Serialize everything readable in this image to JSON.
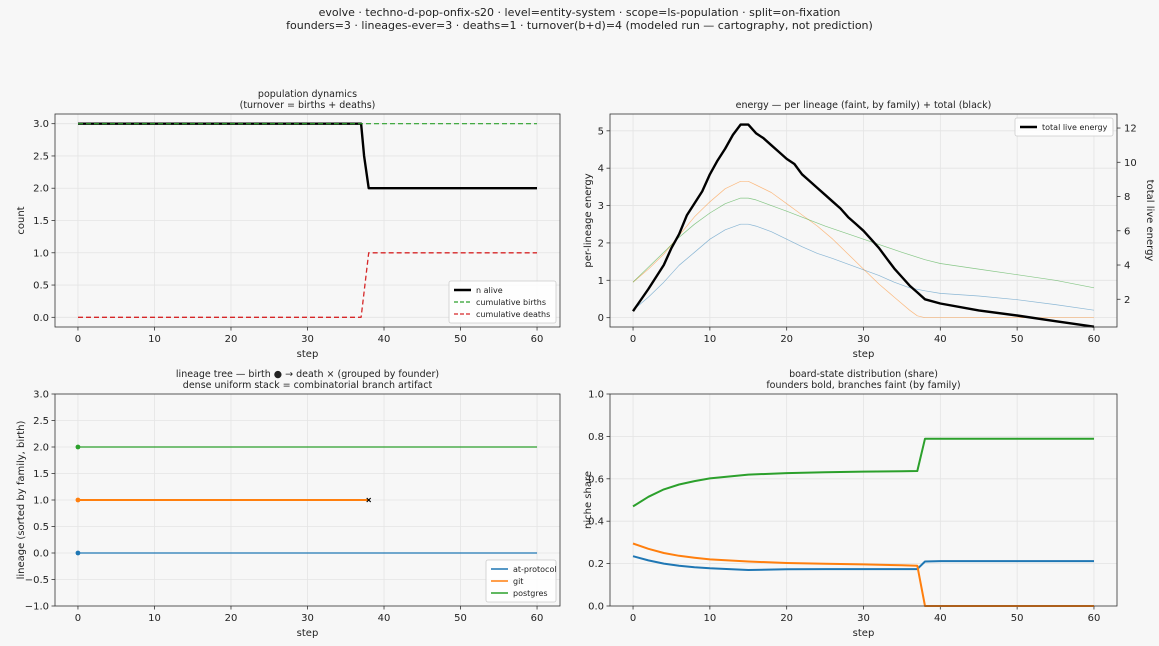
{
  "header": {
    "line1": "evolve · techno-d-pop-onfix-s20 · level=entity-system · scope=ls-population · split=on-fixation",
    "line2": "founders=3 · lineages-ever=3 · deaths=1 · turnover(b+d)=4   (modeled run — cartography, not prediction)"
  },
  "colors": {
    "at_protocol": "#1f77b4",
    "git": "#ff7f0e",
    "postgres": "#2ca02c",
    "births": "#2ca02c",
    "deaths": "#d62728",
    "alive": "#000000",
    "grid": "#e4e4e4"
  },
  "chart_data": [
    {
      "type": "line",
      "title": "population dynamics",
      "subtitle": "(turnover = births + deaths)",
      "xlabel": "step",
      "ylabel": "count",
      "xlim": [
        -3,
        63
      ],
      "ylim": [
        -0.15,
        3.15
      ],
      "xticks": [
        0,
        10,
        20,
        30,
        40,
        50,
        60
      ],
      "yticks": [
        0.0,
        0.5,
        1.0,
        1.5,
        2.0,
        2.5,
        3.0
      ],
      "ytick_labels": [
        "0.0",
        "0.5",
        "1.0",
        "1.5",
        "2.0",
        "2.5",
        "3.0"
      ],
      "grid": true,
      "legend_position": "bottom-right",
      "series": [
        {
          "name": "n alive",
          "style": "solid",
          "width": 2.4,
          "color": "#000000",
          "x": [
            0,
            37,
            37.4,
            38,
            60
          ],
          "y": [
            3,
            3,
            2.5,
            2,
            2
          ]
        },
        {
          "name": "cumulative births",
          "style": "dashed",
          "width": 1.2,
          "color": "#2ca02c",
          "x": [
            0,
            60
          ],
          "y": [
            3,
            3
          ]
        },
        {
          "name": "cumulative deaths",
          "style": "dashed",
          "width": 1.3,
          "color": "#d62728",
          "x": [
            0,
            37,
            38,
            60
          ],
          "y": [
            0,
            0,
            1,
            1
          ]
        }
      ]
    },
    {
      "type": "line",
      "title": "energy — per lineage (faint, by family) + total (black)",
      "subtitle": "",
      "xlabel": "step",
      "ylabel": "per-lineage energy",
      "y2label": "total live energy",
      "xlim": [
        -3,
        63
      ],
      "ylim": [
        -0.25,
        5.45
      ],
      "y2lim": [
        0.38,
        12.82
      ],
      "xticks": [
        0,
        10,
        20,
        30,
        40,
        50,
        60
      ],
      "yticks": [
        0,
        1,
        2,
        3,
        4,
        5
      ],
      "ytick_labels": [
        "0",
        "1",
        "2",
        "3",
        "4",
        "5"
      ],
      "y2ticks": [
        2,
        4,
        6,
        8,
        10,
        12
      ],
      "y2tick_labels": [
        "2",
        "4",
        "6",
        "8",
        "10",
        "12"
      ],
      "grid": true,
      "legend_position": "top-right",
      "series": [
        {
          "name": "at-protocol",
          "axis": "left",
          "style": "solid",
          "width": 0.7,
          "color": "#1f77b4",
          "opacity": 0.5,
          "x": [
            0,
            2,
            4,
            6,
            8,
            10,
            12,
            14,
            15,
            16,
            18,
            20,
            22,
            24,
            26,
            28,
            30,
            32,
            34,
            36,
            38,
            40,
            45,
            50,
            55,
            60
          ],
          "y": [
            0.2,
            0.55,
            0.95,
            1.4,
            1.75,
            2.1,
            2.35,
            2.5,
            2.5,
            2.45,
            2.3,
            2.1,
            1.9,
            1.72,
            1.58,
            1.43,
            1.28,
            1.13,
            0.95,
            0.8,
            0.72,
            0.65,
            0.58,
            0.48,
            0.35,
            0.2
          ]
        },
        {
          "name": "git",
          "axis": "left",
          "style": "solid",
          "width": 0.7,
          "color": "#ff7f0e",
          "opacity": 0.5,
          "x": [
            0,
            2,
            4,
            6,
            8,
            10,
            12,
            14,
            15,
            16,
            18,
            20,
            22,
            24,
            26,
            28,
            30,
            32,
            34,
            36,
            37,
            38,
            40,
            45,
            50,
            55,
            60
          ],
          "y": [
            0.95,
            1.3,
            1.7,
            2.2,
            2.7,
            3.1,
            3.45,
            3.65,
            3.65,
            3.55,
            3.35,
            3.05,
            2.75,
            2.45,
            2.1,
            1.7,
            1.3,
            0.9,
            0.55,
            0.2,
            0.05,
            0.0,
            0.0,
            0.0,
            0.0,
            0.0,
            0.0
          ]
        },
        {
          "name": "postgres",
          "axis": "left",
          "style": "solid",
          "width": 0.7,
          "color": "#2ca02c",
          "opacity": 0.55,
          "x": [
            0,
            2,
            4,
            6,
            8,
            10,
            12,
            14,
            15,
            16,
            18,
            20,
            25,
            30,
            35,
            38,
            40,
            45,
            50,
            55,
            60
          ],
          "y": [
            0.95,
            1.35,
            1.75,
            2.15,
            2.5,
            2.8,
            3.05,
            3.2,
            3.2,
            3.15,
            3.0,
            2.85,
            2.45,
            2.1,
            1.75,
            1.55,
            1.45,
            1.3,
            1.15,
            1.0,
            0.8
          ]
        },
        {
          "name": "total live energy",
          "axis": "right",
          "style": "solid",
          "width": 2.4,
          "color": "#000000",
          "x": [
            0,
            2,
            4,
            5,
            6,
            7,
            8,
            9,
            10,
            11,
            12,
            13,
            14,
            15,
            16,
            17,
            18,
            19,
            20,
            21,
            22,
            23,
            24,
            25,
            26,
            27,
            28,
            29,
            30,
            31,
            32,
            33,
            34,
            35,
            36,
            37,
            38,
            40,
            45,
            50,
            55,
            60
          ],
          "y": [
            1.3,
            2.6,
            4.0,
            5.0,
            5.8,
            6.9,
            7.6,
            8.3,
            9.3,
            10.1,
            10.8,
            11.6,
            12.2,
            12.2,
            11.7,
            11.4,
            11.0,
            10.6,
            10.2,
            9.9,
            9.3,
            8.9,
            8.5,
            8.1,
            7.7,
            7.3,
            6.8,
            6.4,
            6.0,
            5.5,
            5.0,
            4.4,
            3.8,
            3.3,
            2.8,
            2.4,
            2.0,
            1.75,
            1.35,
            1.05,
            0.72,
            0.4
          ]
        }
      ]
    },
    {
      "type": "line",
      "title": "lineage tree — birth ● → death ×  (grouped by founder)",
      "subtitle": "dense uniform stack = combinatorial branch artifact",
      "xlabel": "step",
      "ylabel": "lineage (sorted by family, birth)",
      "xlim": [
        -3,
        63
      ],
      "ylim": [
        -1.0,
        3.0
      ],
      "xticks": [
        0,
        10,
        20,
        30,
        40,
        50,
        60
      ],
      "yticks": [
        -1.0,
        -0.5,
        0.0,
        0.5,
        1.0,
        1.5,
        2.0,
        2.5,
        3.0
      ],
      "ytick_labels": [
        "−1.0",
        "−0.5",
        "0.0",
        "0.5",
        "1.0",
        "1.5",
        "2.0",
        "2.5",
        "3.0"
      ],
      "grid": true,
      "legend_position": "bottom-right",
      "series": [
        {
          "name": "at-protocol",
          "color": "#1f77b4",
          "lineage": 0,
          "birth": 0,
          "end": 60,
          "death": null
        },
        {
          "name": "git",
          "color": "#ff7f0e",
          "lineage": 1,
          "birth": 0,
          "end": 38,
          "death": 38
        },
        {
          "name": "postgres",
          "color": "#2ca02c",
          "lineage": 2,
          "birth": 0,
          "end": 60,
          "death": null
        }
      ]
    },
    {
      "type": "line",
      "title": "board-state distribution (share)",
      "subtitle": "founders bold, branches faint (by family)",
      "xlabel": "step",
      "ylabel": "niche share",
      "xlim": [
        -3,
        63
      ],
      "ylim": [
        0.0,
        1.0
      ],
      "xticks": [
        0,
        10,
        20,
        30,
        40,
        50,
        60
      ],
      "yticks": [
        0.0,
        0.2,
        0.4,
        0.6,
        0.8,
        1.0
      ],
      "ytick_labels": [
        "0.0",
        "0.2",
        "0.4",
        "0.6",
        "0.8",
        "1.0"
      ],
      "grid": true,
      "series": [
        {
          "name": "at-protocol",
          "color": "#1f77b4",
          "width": 2.0,
          "x": [
            0,
            2,
            4,
            6,
            8,
            10,
            15,
            20,
            25,
            30,
            35,
            37,
            38,
            40,
            50,
            60
          ],
          "y": [
            0.235,
            0.215,
            0.2,
            0.19,
            0.183,
            0.178,
            0.17,
            0.173,
            0.174,
            0.174,
            0.174,
            0.174,
            0.21,
            0.212,
            0.212,
            0.212
          ]
        },
        {
          "name": "git",
          "color": "#ff7f0e",
          "width": 2.0,
          "x": [
            0,
            2,
            4,
            6,
            8,
            10,
            15,
            20,
            25,
            30,
            35,
            37,
            38,
            40,
            50,
            60
          ],
          "y": [
            0.295,
            0.27,
            0.25,
            0.237,
            0.228,
            0.22,
            0.21,
            0.203,
            0.199,
            0.196,
            0.192,
            0.19,
            0.0,
            0.0,
            0.0,
            0.0
          ]
        },
        {
          "name": "postgres",
          "color": "#2ca02c",
          "width": 2.0,
          "x": [
            0,
            2,
            4,
            6,
            8,
            10,
            15,
            20,
            25,
            30,
            35,
            37,
            38,
            40,
            50,
            60
          ],
          "y": [
            0.47,
            0.515,
            0.55,
            0.573,
            0.589,
            0.602,
            0.62,
            0.627,
            0.631,
            0.634,
            0.636,
            0.637,
            0.789,
            0.789,
            0.789,
            0.789
          ]
        }
      ]
    }
  ]
}
